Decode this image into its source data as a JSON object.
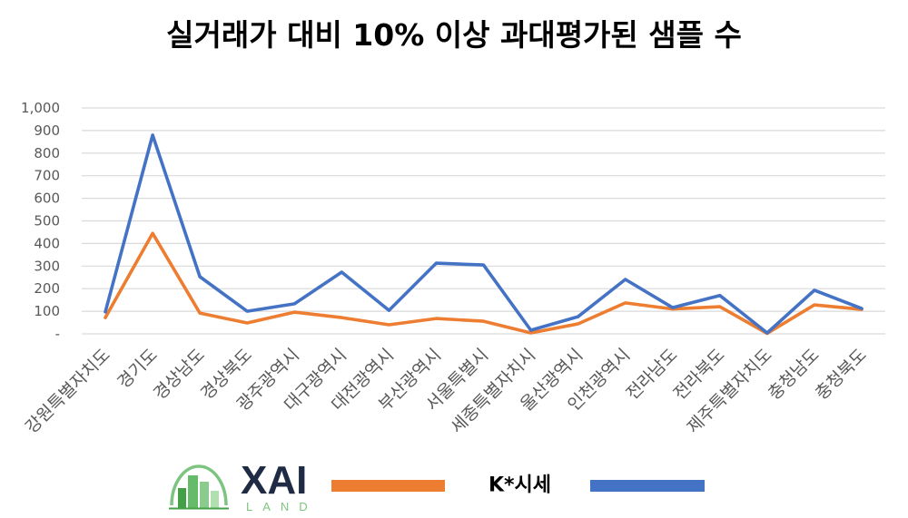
{
  "chart_data": {
    "type": "line",
    "title": "실거래가 대비 10% 이상 과대평가된 샘플 수",
    "categories": [
      "강원특별자치도",
      "경기도",
      "경상남도",
      "경상북도",
      "광주광역시",
      "대구광역시",
      "대전광역시",
      "부산광역시",
      "서울특별시",
      "세종특별자치시",
      "울산광역시",
      "인천광역시",
      "전라남도",
      "전라북도",
      "제주특별자치도",
      "충청남도",
      "충청북도"
    ],
    "series": [
      {
        "values": [
          72,
          445,
          92,
          48,
          96,
          72,
          40,
          68,
          56,
          4,
          44,
          137,
          110,
          120,
          2,
          128,
          108
        ],
        "color": "#ED7D31"
      },
      {
        "name": "K*시세",
        "values": [
          97,
          880,
          253,
          100,
          133,
          273,
          104,
          313,
          305,
          16,
          76,
          241,
          116,
          170,
          4,
          193,
          112
        ],
        "color": "#4472C4"
      }
    ],
    "ylim": [
      0,
      1000
    ],
    "yticks": [
      0,
      100,
      200,
      300,
      400,
      500,
      600,
      700,
      800,
      900,
      1000
    ],
    "ytick_labels": [
      "-",
      "100",
      "200",
      "300",
      "400",
      "500",
      "600",
      "700",
      "800",
      "900",
      "1,000"
    ],
    "grid": true,
    "legend": {
      "position": "bottom",
      "logo": {
        "wordmark": "XAI",
        "tagline": "LAND",
        "wordmark_color": "#1F2A44",
        "tagline_color": "#7DC57F",
        "arch_color": "#7CC47F",
        "icon_colors": [
          "#43A047",
          "#66BB6A",
          "#8BCB8E",
          "#B2DFAF"
        ]
      }
    }
  }
}
